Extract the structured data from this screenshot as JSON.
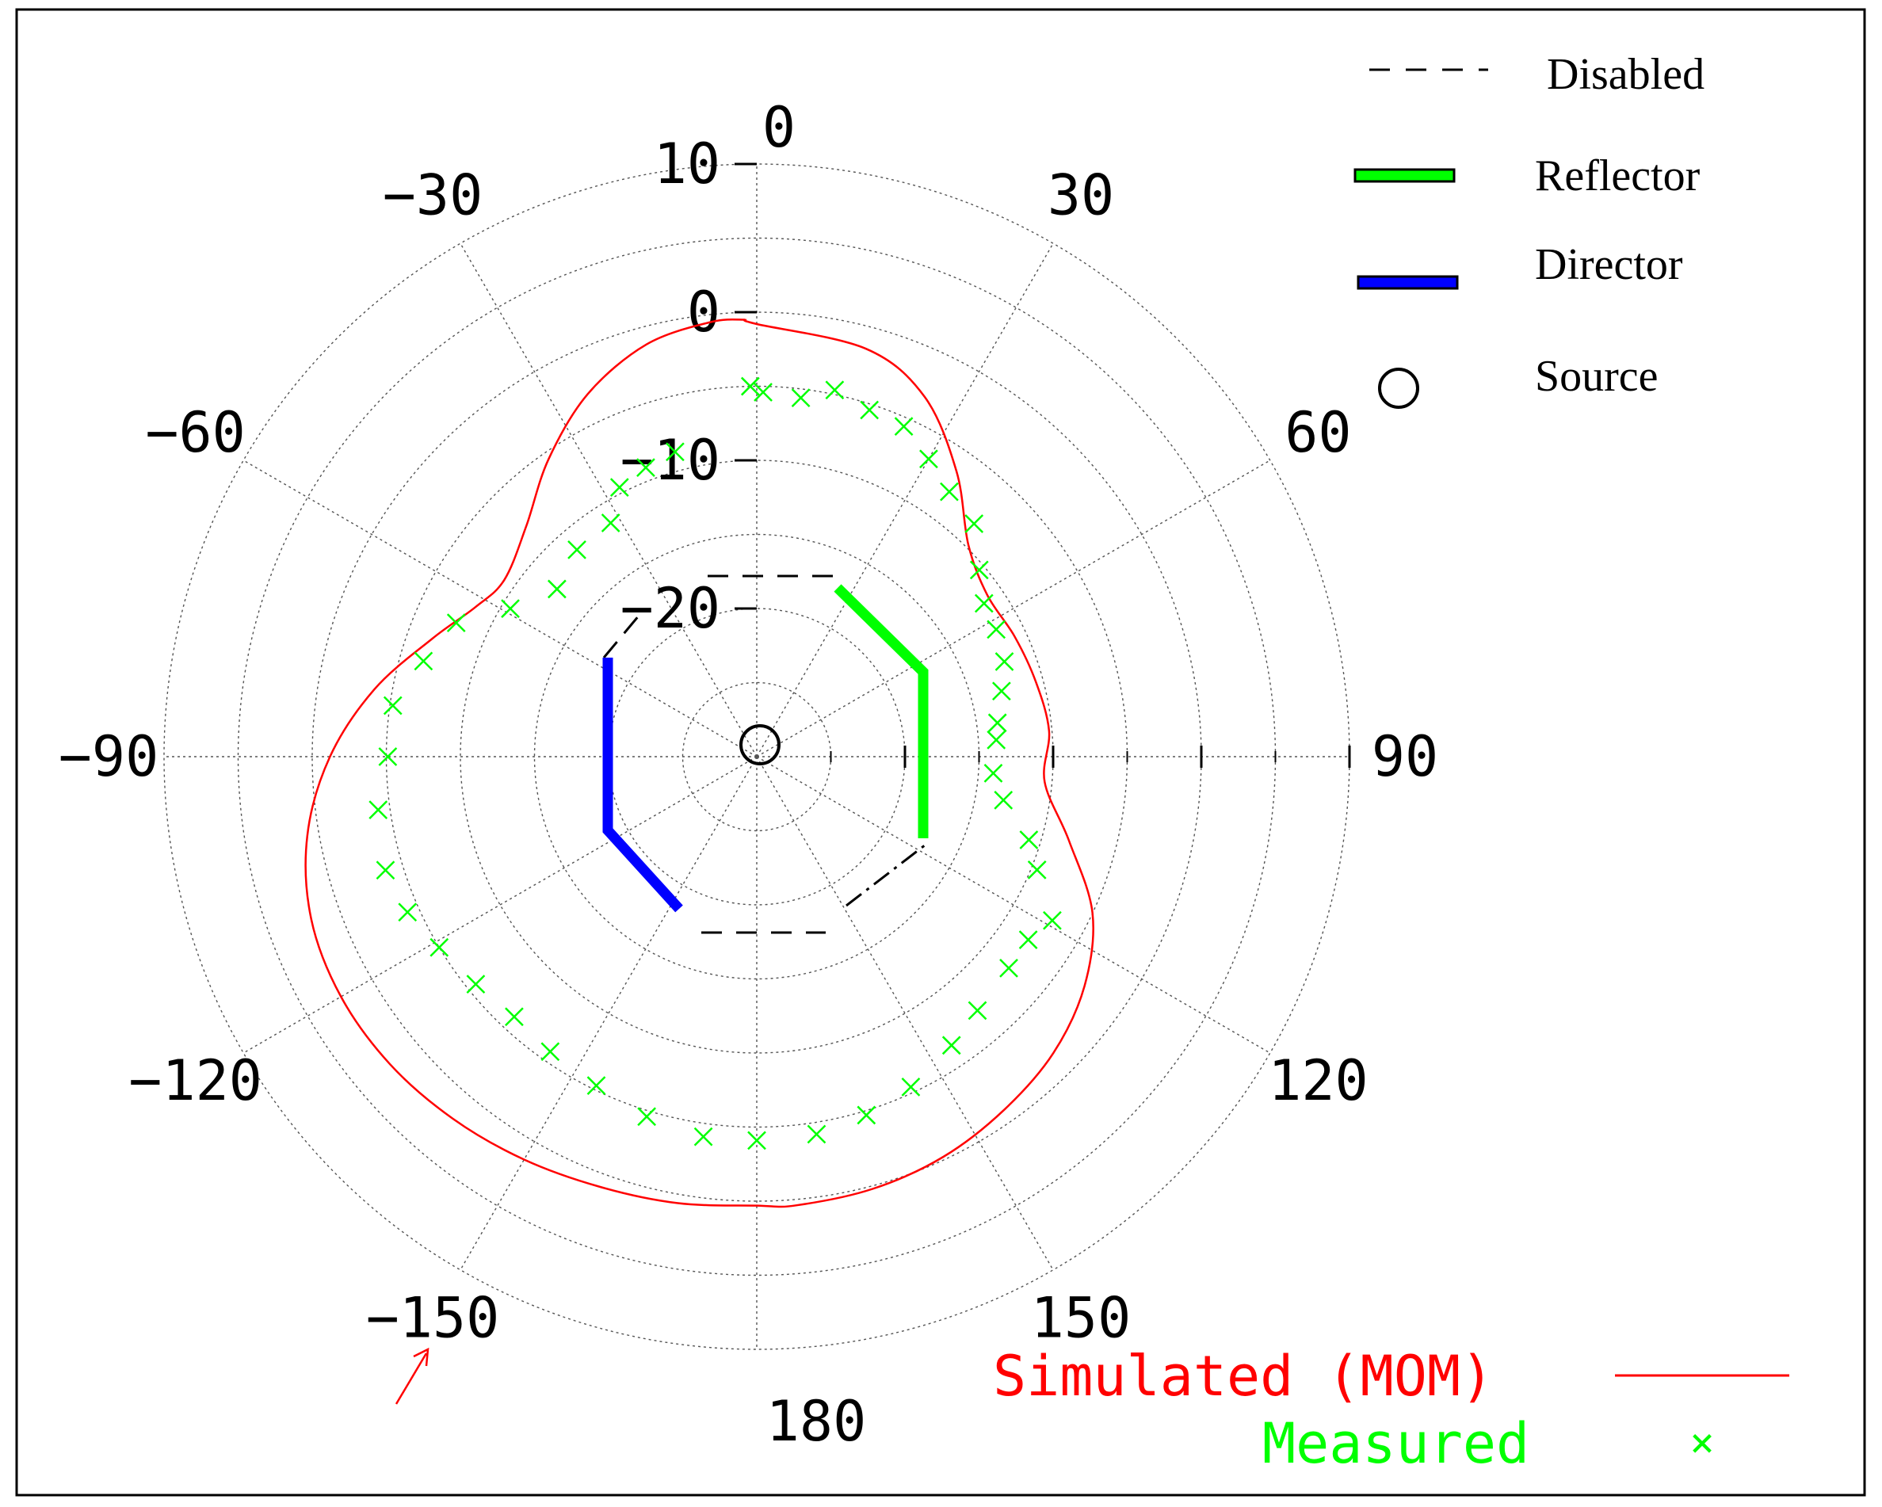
{
  "chart_data": {
    "type": "polar",
    "angle_unit": "deg",
    "angle_zero": "top",
    "angle_direction": "clockwise",
    "rlim": [
      -30,
      10
    ],
    "r_ticks": [
      10,
      0,
      -10,
      -20
    ],
    "r_tick_labels": [
      "10",
      "0",
      "−10",
      "−20"
    ],
    "angle_ticks": [
      0,
      30,
      60,
      90,
      120,
      150,
      180,
      -150,
      -120,
      -90,
      -60,
      -30
    ],
    "angle_tick_labels": [
      "0",
      "30",
      "60",
      "90",
      "120",
      "150",
      "180",
      "−150",
      "−120",
      "−90",
      "−60",
      "−30"
    ],
    "grid": true,
    "series": [
      {
        "name": "Simulated (MOM)",
        "label": "Simulated (MOM)",
        "color": "#ff0000",
        "style": "line",
        "points": [
          [
            -1.5,
            -0.5
          ],
          [
            0,
            -0.8
          ],
          [
            15,
            -1.5
          ],
          [
            25,
            -3.2
          ],
          [
            35,
            -6.5
          ],
          [
            45,
            -9.8
          ],
          [
            55,
            -11.0
          ],
          [
            65,
            -10.8
          ],
          [
            75,
            -10.5
          ],
          [
            85,
            -10.2
          ],
          [
            95,
            -10.5
          ],
          [
            105,
            -8.2
          ],
          [
            115,
            -5.0
          ],
          [
            125,
            -3.0
          ],
          [
            135,
            -1.7
          ],
          [
            145,
            -0.9
          ],
          [
            155,
            -0.2
          ],
          [
            165,
            0.2
          ],
          [
            175,
            0.4
          ],
          [
            180,
            0.3
          ],
          [
            -170,
            0.6
          ],
          [
            -160,
            0.9
          ],
          [
            -150,
            1.4
          ],
          [
            -140,
            1.9
          ],
          [
            -130,
            2.3
          ],
          [
            -120,
            2.4
          ],
          [
            -110,
            2.0
          ],
          [
            -100,
            0.8
          ],
          [
            -90,
            -1.2
          ],
          [
            -80,
            -3.8
          ],
          [
            -70,
            -6.7
          ],
          [
            -62,
            -8.5
          ],
          [
            -55,
            -9.2
          ],
          [
            -45,
            -8.0
          ],
          [
            -35,
            -5.5
          ],
          [
            -25,
            -3.0
          ],
          [
            -15,
            -1.2
          ],
          [
            -6,
            -0.5
          ],
          [
            -1.5,
            -0.5
          ]
        ]
      },
      {
        "name": "Measured",
        "label": "Measured",
        "color": "#00ff00",
        "style": "marker",
        "marker": "×",
        "points": [
          [
            -1,
            -5.0
          ],
          [
            1,
            -5.4
          ],
          [
            7,
            -5.6
          ],
          [
            12,
            -4.7
          ],
          [
            18,
            -5.4
          ],
          [
            24,
            -5.6
          ],
          [
            30,
            -6.8
          ],
          [
            36,
            -7.9
          ],
          [
            43,
            -8.5
          ],
          [
            50,
            -10.4
          ],
          [
            56,
            -11.5
          ],
          [
            62,
            -11.7
          ],
          [
            69,
            -12.1
          ],
          [
            75,
            -12.9
          ],
          [
            82,
            -13.6
          ],
          [
            86,
            -13.8
          ],
          [
            94,
            -14.0
          ],
          [
            100,
            -13.1
          ],
          [
            107,
            -10.8
          ],
          [
            112,
            -9.6
          ],
          [
            119,
            -7.2
          ],
          [
            124,
            -7.9
          ],
          [
            130,
            -7.8
          ],
          [
            139,
            -7.3
          ],
          [
            146,
            -6.5
          ],
          [
            155,
            -5.4
          ],
          [
            163,
            -4.7
          ],
          [
            171,
            -4.2
          ],
          [
            180,
            -4.1
          ],
          [
            -172,
            -4.1
          ],
          [
            -163,
            -4.6
          ],
          [
            -154,
            -5.3
          ],
          [
            -145,
            -5.7
          ],
          [
            -137,
            -6.0
          ],
          [
            -129,
            -5.6
          ],
          [
            -121,
            -5.0
          ],
          [
            -114,
            -4.2
          ],
          [
            -107,
            -3.8
          ],
          [
            -98,
            -4.2
          ],
          [
            -90,
            -5.1
          ],
          [
            -82,
            -5.2
          ],
          [
            -74,
            -6.6
          ],
          [
            -66,
            -7.8
          ],
          [
            -59,
            -10.6
          ],
          [
            -50,
            -12.4
          ],
          [
            -41,
            -11.5
          ],
          [
            -32,
            -11.4
          ],
          [
            -27,
            -9.6
          ],
          [
            -21,
            -9.1
          ],
          [
            -15,
            -8.7
          ]
        ]
      }
    ],
    "elements": [
      {
        "name": "Disabled",
        "label": "Disabled",
        "color": "#000000",
        "style": "dashed"
      },
      {
        "name": "Reflector",
        "label": "Reflector",
        "color": "#00ff00",
        "style": "thick-line"
      },
      {
        "name": "Director",
        "label": "Director",
        "color": "#0000ff",
        "style": "thick-line"
      },
      {
        "name": "Source",
        "label": "Source",
        "color": "#000000",
        "style": "circle"
      }
    ],
    "legend_position": "top-right"
  }
}
